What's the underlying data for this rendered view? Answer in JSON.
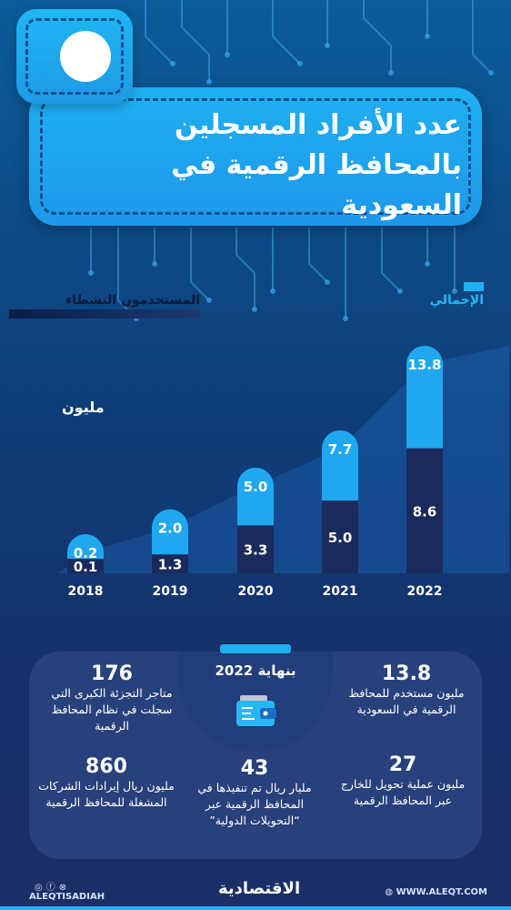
{
  "title": "عدد الأفراد المسجلين بالمحافظ الرقمية في السعودية",
  "legend": {
    "active": "المستخدمون النشطاء",
    "total": "الإجمالي"
  },
  "unit": "مليون",
  "colors": {
    "total_bar": "#1fa8f0",
    "active_bar": "#1b2a5c",
    "accent": "#1fb0f2",
    "area": "#1f6cc4"
  },
  "chart_data": {
    "type": "bar",
    "categories": [
      "2018",
      "2019",
      "2020",
      "2021",
      "2022"
    ],
    "series": [
      {
        "name": "الإجمالي",
        "values": [
          0.2,
          2.0,
          5.0,
          7.7,
          13.8
        ]
      },
      {
        "name": "المستخدمون النشطاء",
        "values": [
          0.1,
          1.3,
          3.3,
          5.0,
          8.6
        ]
      }
    ],
    "value_labels_total": [
      "0.2",
      "2.0",
      "5.0",
      "7.7",
      "13.8"
    ],
    "value_labels_active": [
      "0.1",
      "1.3",
      "3.3",
      "5.0",
      "8.6"
    ],
    "ylabel": "مليون",
    "ylim": [
      0,
      13.8
    ],
    "grid": false,
    "legend_placement": "top"
  },
  "panel": {
    "center_title": "بنهاية 2022",
    "stats": [
      {
        "num": "176",
        "desc": "متاجر التجزئة الكبرى التي سجلت في نظام المحافظ الرقمية"
      },
      {
        "num": "13.8",
        "desc": "مليون مستخدم للمحافظ الرقمية في السعودية"
      },
      {
        "num": "860",
        "desc": "مليون ريال إيرادات الشركات المشغلة للمحافظ الرقمية"
      },
      {
        "num": "43",
        "desc": "مليار ريال تم تنفيذها في المحافظ الرقمية عبر “التحويلات الدولية”"
      },
      {
        "num": "27",
        "desc": "مليون عملية تحويل للخارج عبر المحافظ الرقمية"
      }
    ]
  },
  "footer": {
    "handle": "ALEQTISADIAH",
    "brand": "الاقتصادية",
    "site": "WWW.ALEQT.COM"
  }
}
